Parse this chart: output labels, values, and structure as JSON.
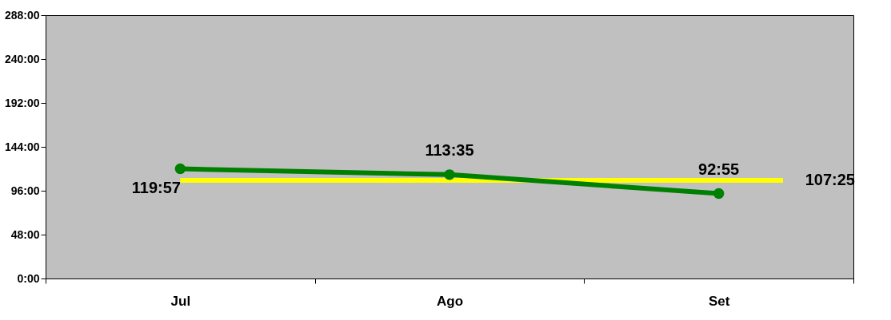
{
  "chart_data": {
    "type": "line",
    "categories": [
      "Jul",
      "Ago",
      "Set"
    ],
    "series": [
      {
        "color": "#008000",
        "values": [
          119.95,
          113.5833,
          92.9167
        ],
        "value_labels": [
          "119:57",
          "113:35",
          "92:55"
        ]
      }
    ],
    "ylim": [
      0,
      288
    ],
    "yticks": [
      {
        "value": 0,
        "label": "0:00"
      },
      {
        "value": 48,
        "label": "48:00"
      },
      {
        "value": 96,
        "label": "96:00"
      },
      {
        "value": 144,
        "label": "144:00"
      },
      {
        "value": 192,
        "label": "192:00"
      },
      {
        "value": 240,
        "label": "240:00"
      },
      {
        "value": 288,
        "label": "288:00"
      }
    ],
    "ref_lines": [
      {
        "axis": "y",
        "value": 107.4167,
        "label": "107:25",
        "color": "#ffff00"
      }
    ],
    "marker": "circle",
    "grid": false
  }
}
